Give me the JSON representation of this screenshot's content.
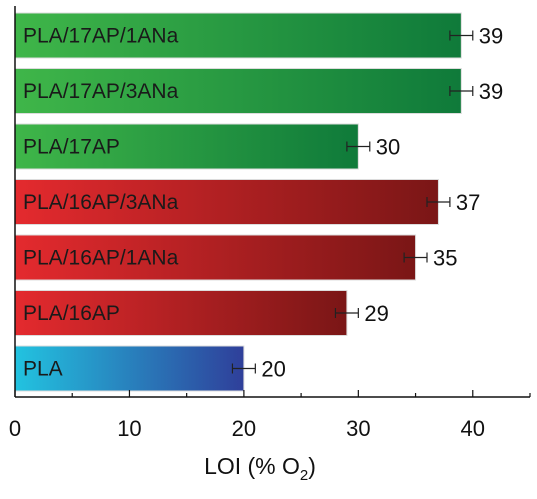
{
  "chart_data": {
    "type": "bar",
    "orientation": "horizontal",
    "categories": [
      "PLA/17AP/1ANa",
      "PLA/17AP/3ANa",
      "PLA/17AP",
      "PLA/16AP/3ANa",
      "PLA/16AP/1ANa",
      "PLA/16AP",
      "PLA"
    ],
    "values": [
      39,
      39,
      30,
      37,
      35,
      29,
      20
    ],
    "data_labels": [
      "39",
      "39",
      "30",
      "37",
      "35",
      "29",
      "20"
    ],
    "error": [
      1,
      1,
      1,
      1,
      1,
      1,
      1
    ],
    "bar_colors": [
      [
        "#3fb649",
        "#0f7a3a"
      ],
      [
        "#3fb649",
        "#0f7a3a"
      ],
      [
        "#3fb649",
        "#0f7a3a"
      ],
      [
        "#e42a2e",
        "#7a1616"
      ],
      [
        "#e42a2e",
        "#7a1616"
      ],
      [
        "#e42a2e",
        "#7a1616"
      ],
      [
        "#22c3e0",
        "#2f3f9a"
      ]
    ],
    "xlabel": "LOI (% O",
    "xlabel_subscript": "2",
    "xlabel_suffix": ")",
    "xlim": [
      0,
      45
    ],
    "xticks": [
      0,
      10,
      20,
      30,
      40
    ],
    "xtick_labels": [
      "0",
      "10",
      "20",
      "30",
      "40"
    ],
    "grid": false
  }
}
